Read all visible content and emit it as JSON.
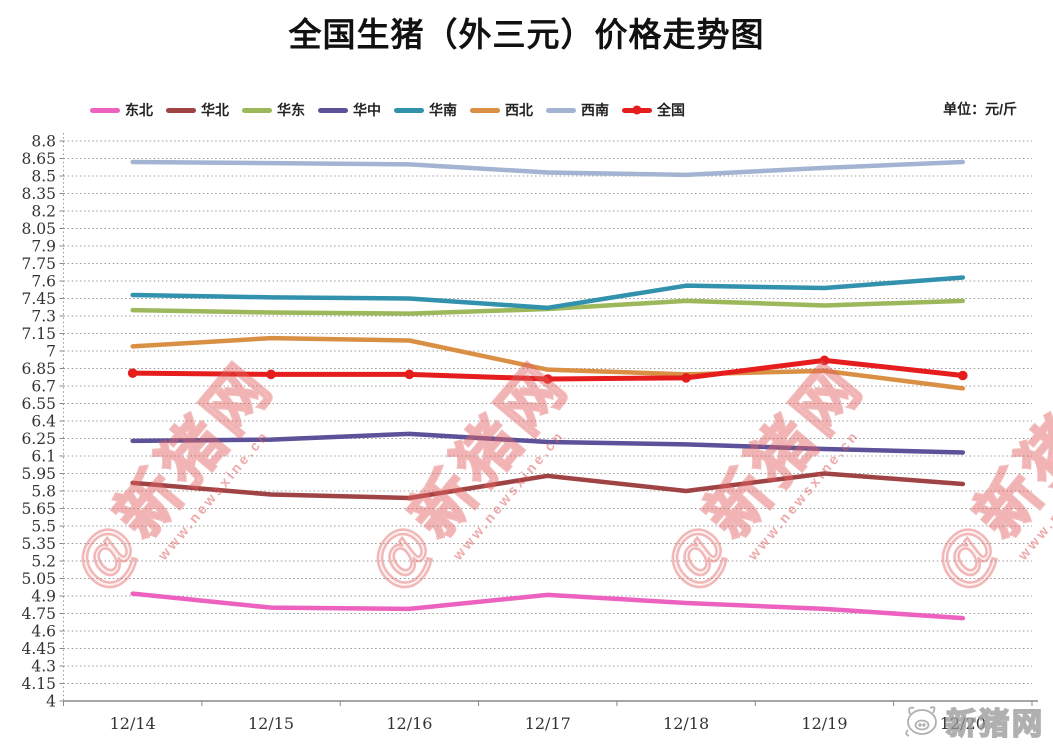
{
  "title": "全国生猪（外三元）价格走势图",
  "unit_label": "单位：元/斤",
  "watermark": {
    "big_text": "@新猪网",
    "small_text": "www.newsxine.cn"
  },
  "logo_text": "新猪网",
  "chart_data": {
    "type": "line",
    "title": "全国生猪（外三元）价格走势图",
    "unit": "元/斤",
    "categories": [
      "12/14",
      "12/15",
      "12/16",
      "12/17",
      "12/18",
      "12/19",
      "12/20"
    ],
    "series": [
      {
        "key": "dongbei",
        "name": "东北",
        "color": "#ED62BE",
        "marker": false,
        "values": [
          4.92,
          4.8,
          4.79,
          4.91,
          4.84,
          4.79,
          4.71
        ]
      },
      {
        "key": "huabei",
        "name": "华北",
        "color": "#A04344",
        "marker": false,
        "values": [
          5.87,
          5.77,
          5.74,
          5.93,
          5.8,
          5.95,
          5.86
        ]
      },
      {
        "key": "huadong",
        "name": "华东",
        "color": "#9CB85A",
        "marker": false,
        "values": [
          7.35,
          7.33,
          7.32,
          7.36,
          7.43,
          7.39,
          7.43
        ]
      },
      {
        "key": "huazhong",
        "name": "华中",
        "color": "#5C5299",
        "marker": false,
        "values": [
          6.23,
          6.24,
          6.29,
          6.22,
          6.2,
          6.16,
          6.13
        ]
      },
      {
        "key": "huanan",
        "name": "华南",
        "color": "#3292AD",
        "marker": false,
        "values": [
          7.48,
          7.46,
          7.45,
          7.37,
          7.56,
          7.54,
          7.63
        ]
      },
      {
        "key": "xibei",
        "name": "西北",
        "color": "#D98F44",
        "marker": false,
        "values": [
          7.04,
          7.11,
          7.09,
          6.84,
          6.8,
          6.83,
          6.68
        ]
      },
      {
        "key": "xinan",
        "name": "西南",
        "color": "#A2B4D2",
        "marker": false,
        "values": [
          8.62,
          8.61,
          8.6,
          8.53,
          8.51,
          8.57,
          8.62
        ]
      },
      {
        "key": "quanguo",
        "name": "全国",
        "color": "#E51D1D",
        "marker": true,
        "values": [
          6.81,
          6.8,
          6.8,
          6.76,
          6.77,
          6.92,
          6.79
        ]
      }
    ],
    "ylim": [
      4,
      8.8
    ],
    "ytick_step": 0.15,
    "grid": "horizontal-dotted",
    "legend_position": "top"
  }
}
